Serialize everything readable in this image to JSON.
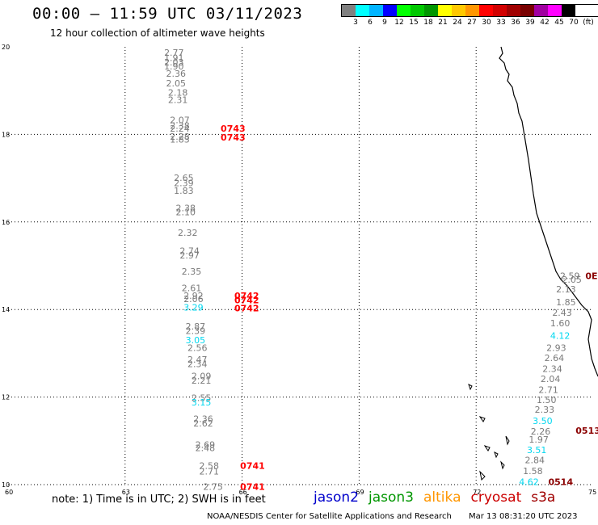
{
  "header": {
    "title": "00:00 — 11:59 UTC 03/11/2023",
    "subtitle": "12 hour collection of altimeter wave heights"
  },
  "legend": {
    "colors": [
      "#808080",
      "#00ffff",
      "#00b4ff",
      "#0000ff",
      "#00ff00",
      "#00c800",
      "#009600",
      "#ffff00",
      "#ffc800",
      "#ff9600",
      "#ff0000",
      "#d20000",
      "#a00000",
      "#780000",
      "#a000a0",
      "#ff00ff",
      "#000000"
    ],
    "labels": [
      "3",
      "6",
      "9",
      "12",
      "15",
      "18",
      "21",
      "24",
      "27",
      "30",
      "33",
      "36",
      "39",
      "42",
      "45",
      "70",
      "(ft)"
    ]
  },
  "axes": {
    "x_ticks": [
      "60",
      "63",
      "66",
      "69",
      "72",
      "75"
    ],
    "y_ticks": [
      "20",
      "18",
      "16",
      "14",
      "12",
      "10"
    ]
  },
  "observations": [
    {
      "label": "2.77",
      "lon": 64.0,
      "lat": 19.8,
      "color": "gray"
    },
    {
      "label": "1.91",
      "lon": 64.0,
      "lat": 19.68,
      "color": "gray"
    },
    {
      "label": "2.03",
      "lon": 64.0,
      "lat": 19.58,
      "color": "gray"
    },
    {
      "label": "1.90",
      "lon": 64.0,
      "lat": 19.48,
      "color": "gray"
    },
    {
      "label": "2.36",
      "lon": 64.05,
      "lat": 19.32,
      "color": "gray"
    },
    {
      "label": "2.05",
      "lon": 64.05,
      "lat": 19.1,
      "color": "gray"
    },
    {
      "label": "2.18",
      "lon": 64.1,
      "lat": 18.88,
      "color": "gray"
    },
    {
      "label": "2.31",
      "lon": 64.1,
      "lat": 18.72,
      "color": "gray"
    },
    {
      "label": "2.07",
      "lon": 64.15,
      "lat": 18.26,
      "color": "gray"
    },
    {
      "label": "2.38",
      "lon": 64.15,
      "lat": 18.13,
      "color": "gray"
    },
    {
      "label": "2.24",
      "lon": 64.15,
      "lat": 18.06,
      "color": "gray"
    },
    {
      "label": "2.28",
      "lon": 64.15,
      "lat": 17.88,
      "color": "gray"
    },
    {
      "label": "1.83",
      "lon": 64.15,
      "lat": 17.81,
      "color": "gray"
    },
    {
      "label": "2.65",
      "lon": 64.25,
      "lat": 16.94,
      "color": "gray"
    },
    {
      "label": "2.39",
      "lon": 64.25,
      "lat": 16.82,
      "color": "gray"
    },
    {
      "label": "1.83",
      "lon": 64.25,
      "lat": 16.64,
      "color": "gray"
    },
    {
      "label": "2.38",
      "lon": 64.3,
      "lat": 16.25,
      "color": "gray"
    },
    {
      "label": "2.10",
      "lon": 64.3,
      "lat": 16.15,
      "color": "gray"
    },
    {
      "label": "2.32",
      "lon": 64.35,
      "lat": 15.68,
      "color": "gray"
    },
    {
      "label": "2.74",
      "lon": 64.4,
      "lat": 15.27,
      "color": "gray"
    },
    {
      "label": "2.97",
      "lon": 64.4,
      "lat": 15.17,
      "color": "gray"
    },
    {
      "label": "2.35",
      "lon": 64.45,
      "lat": 14.8,
      "color": "gray"
    },
    {
      "label": "2.61",
      "lon": 64.45,
      "lat": 14.42,
      "color": "gray"
    },
    {
      "label": "2.92",
      "lon": 64.5,
      "lat": 14.24,
      "color": "gray"
    },
    {
      "label": "2.06",
      "lon": 64.5,
      "lat": 14.17,
      "color": "gray"
    },
    {
      "label": "3.29",
      "lon": 64.5,
      "lat": 13.98,
      "color": "cyan"
    },
    {
      "label": "2.87",
      "lon": 64.55,
      "lat": 13.54,
      "color": "gray"
    },
    {
      "label": "2.39",
      "lon": 64.55,
      "lat": 13.44,
      "color": "gray"
    },
    {
      "label": "3.05",
      "lon": 64.55,
      "lat": 13.23,
      "color": "cyan"
    },
    {
      "label": "2.56",
      "lon": 64.6,
      "lat": 13.05,
      "color": "gray"
    },
    {
      "label": "2.47",
      "lon": 64.6,
      "lat": 12.79,
      "color": "gray"
    },
    {
      "label": "2.34",
      "lon": 64.6,
      "lat": 12.68,
      "color": "gray"
    },
    {
      "label": "2.09",
      "lon": 64.7,
      "lat": 12.41,
      "color": "gray"
    },
    {
      "label": "2.21",
      "lon": 64.7,
      "lat": 12.31,
      "color": "gray"
    },
    {
      "label": "2.55",
      "lon": 64.7,
      "lat": 11.91,
      "color": "gray"
    },
    {
      "label": "3.15",
      "lon": 64.7,
      "lat": 11.81,
      "color": "cyan"
    },
    {
      "label": "2.36",
      "lon": 64.75,
      "lat": 11.43,
      "color": "gray"
    },
    {
      "label": "2.62",
      "lon": 64.75,
      "lat": 11.33,
      "color": "gray"
    },
    {
      "label": "2.69",
      "lon": 64.8,
      "lat": 10.84,
      "color": "gray"
    },
    {
      "label": "2.48",
      "lon": 64.8,
      "lat": 10.77,
      "color": "gray"
    },
    {
      "label": "2.58",
      "lon": 64.9,
      "lat": 10.36,
      "color": "gray"
    },
    {
      "label": "2.71",
      "lon": 64.9,
      "lat": 10.23,
      "color": "gray"
    },
    {
      "label": "2.75",
      "lon": 65.0,
      "lat": 9.88,
      "color": "gray"
    },
    {
      "label": "0743",
      "lon": 65.45,
      "lat": 18.06,
      "color": "red"
    },
    {
      "label": "0743",
      "lon": 65.45,
      "lat": 17.86,
      "color": "red"
    },
    {
      "label": "0742",
      "lon": 65.8,
      "lat": 14.24,
      "color": "red"
    },
    {
      "label": "0742",
      "lon": 65.8,
      "lat": 14.14,
      "color": "red"
    },
    {
      "label": "0742",
      "lon": 65.8,
      "lat": 13.96,
      "color": "red"
    },
    {
      "label": "0741",
      "lon": 65.95,
      "lat": 10.36,
      "color": "red"
    },
    {
      "label": "0741",
      "lon": 65.95,
      "lat": 9.88,
      "color": "red"
    },
    {
      "label": "2.59",
      "lon": 74.15,
      "lat": 14.7,
      "color": "gray"
    },
    {
      "label": "2.05",
      "lon": 74.2,
      "lat": 14.61,
      "color": "gray"
    },
    {
      "label": "0E",
      "lon": 74.8,
      "lat": 14.7,
      "color": "darkred"
    },
    {
      "label": "2.13",
      "lon": 74.05,
      "lat": 14.39,
      "color": "gray"
    },
    {
      "label": "1.85",
      "lon": 74.05,
      "lat": 14.1,
      "color": "gray"
    },
    {
      "label": "2.43",
      "lon": 73.95,
      "lat": 13.86,
      "color": "gray"
    },
    {
      "label": "1.60",
      "lon": 73.9,
      "lat": 13.62,
      "color": "gray"
    },
    {
      "label": "4.12",
      "lon": 73.9,
      "lat": 13.33,
      "color": "cyan"
    },
    {
      "label": "2.93",
      "lon": 73.8,
      "lat": 13.05,
      "color": "gray"
    },
    {
      "label": "2.64",
      "lon": 73.75,
      "lat": 12.82,
      "color": "gray"
    },
    {
      "label": "2.34",
      "lon": 73.7,
      "lat": 12.57,
      "color": "gray"
    },
    {
      "label": "2.04",
      "lon": 73.65,
      "lat": 12.34,
      "color": "gray"
    },
    {
      "label": "2.71",
      "lon": 73.6,
      "lat": 12.09,
      "color": "gray"
    },
    {
      "label": "1.50",
      "lon": 73.55,
      "lat": 11.86,
      "color": "gray"
    },
    {
      "label": "2.33",
      "lon": 73.5,
      "lat": 11.64,
      "color": "gray"
    },
    {
      "label": "3.50",
      "lon": 73.45,
      "lat": 11.38,
      "color": "cyan"
    },
    {
      "label": "0513",
      "lon": 74.55,
      "lat": 11.16,
      "color": "darkred"
    },
    {
      "label": "2.26",
      "lon": 73.4,
      "lat": 11.14,
      "color": "gray"
    },
    {
      "label": "1.97",
      "lon": 73.35,
      "lat": 10.96,
      "color": "gray"
    },
    {
      "label": "3.51",
      "lon": 73.3,
      "lat": 10.72,
      "color": "cyan"
    },
    {
      "label": "2.84",
      "lon": 73.25,
      "lat": 10.49,
      "color": "gray"
    },
    {
      "label": "1.58",
      "lon": 73.2,
      "lat": 10.24,
      "color": "gray"
    },
    {
      "label": "4.62",
      "lon": 73.1,
      "lat": 9.99,
      "color": "cyan"
    },
    {
      "label": "0514",
      "lon": 73.85,
      "lat": 9.99,
      "color": "darkred"
    }
  ],
  "footer": {
    "note": "note: 1) Time is in UTC; 2) SWH is in feet",
    "satellites": [
      {
        "name": "jason2",
        "color": "#0000cc"
      },
      {
        "name": "jason3",
        "color": "#009600"
      },
      {
        "name": "altika",
        "color": "#ff9600"
      },
      {
        "name": "cryosat",
        "color": "#cc0000"
      },
      {
        "name": "s3a",
        "color": "#a00000"
      }
    ],
    "credit": "NOAA/NESDIS Center for Satellite Applications and Research",
    "timestamp": "Mar 13 08:31:20 UTC 2023"
  }
}
